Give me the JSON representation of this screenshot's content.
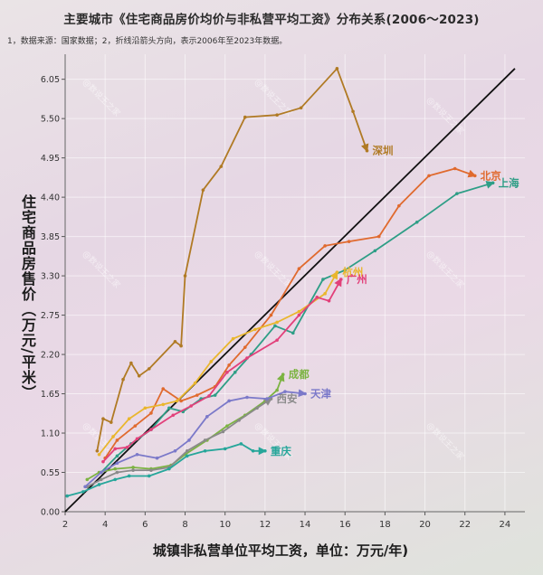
{
  "title": "主要城市《住宅商品房价均价与非私营平均工资》分布关系(2006～2023)",
  "note": "1，数据来源：国家数据；2，折线沿箭头方向，表示2006年至2023年数据。",
  "watermark": "@数说王之家",
  "chart_data": {
    "type": "line",
    "xlabel": "城镇非私营单位平均工资，单位：万元/年)",
    "ylabel": "住宅商品房售价（万元/平米）",
    "xlim": [
      2,
      25
    ],
    "ylim": [
      0,
      6.4
    ],
    "x_ticks": [
      "2",
      "4",
      "6",
      "8",
      "10",
      "12",
      "14",
      "16",
      "18",
      "20",
      "22",
      "24"
    ],
    "y_ticks": [
      "0.00",
      "0.55",
      "1.10",
      "1.65",
      "2.20",
      "2.75",
      "3.30",
      "3.85",
      "4.40",
      "4.95",
      "5.50",
      "6.05"
    ],
    "grid": true,
    "reference_line": {
      "x": [
        2,
        24.5
      ],
      "y": [
        0,
        6.2
      ]
    },
    "series": [
      {
        "name": "深圳",
        "color": "#b07a24",
        "label_pos": "right",
        "points": [
          [
            3.6,
            0.85
          ],
          [
            3.9,
            1.3
          ],
          [
            4.3,
            1.25
          ],
          [
            4.9,
            1.85
          ],
          [
            5.3,
            2.08
          ],
          [
            5.7,
            1.9
          ],
          [
            6.2,
            2.0
          ],
          [
            7.5,
            2.38
          ],
          [
            7.8,
            2.32
          ],
          [
            8.0,
            3.3
          ],
          [
            8.9,
            4.5
          ],
          [
            9.8,
            4.83
          ],
          [
            11.0,
            5.52
          ],
          [
            12.6,
            5.55
          ],
          [
            13.8,
            5.65
          ],
          [
            15.6,
            6.2
          ],
          [
            16.4,
            5.6
          ],
          [
            17.1,
            5.05
          ]
        ]
      },
      {
        "name": "北京",
        "color": "#e06a2e",
        "label_pos": "right",
        "points": [
          [
            4.0,
            0.75
          ],
          [
            4.6,
            1.0
          ],
          [
            5.5,
            1.2
          ],
          [
            6.3,
            1.38
          ],
          [
            6.9,
            1.72
          ],
          [
            7.8,
            1.55
          ],
          [
            8.6,
            1.63
          ],
          [
            9.5,
            1.75
          ],
          [
            10.2,
            2.05
          ],
          [
            11.0,
            2.3
          ],
          [
            12.3,
            2.75
          ],
          [
            13.7,
            3.4
          ],
          [
            15.0,
            3.72
          ],
          [
            16.2,
            3.78
          ],
          [
            17.7,
            3.85
          ],
          [
            18.7,
            4.28
          ],
          [
            20.2,
            4.7
          ],
          [
            21.5,
            4.8
          ],
          [
            22.5,
            4.7
          ]
        ]
      },
      {
        "name": "上海",
        "color": "#2e9e86",
        "label_pos": "right",
        "points": [
          [
            3.8,
            0.55
          ],
          [
            4.6,
            0.78
          ],
          [
            5.3,
            0.95
          ],
          [
            6.3,
            1.15
          ],
          [
            7.2,
            1.45
          ],
          [
            7.9,
            1.4
          ],
          [
            8.8,
            1.58
          ],
          [
            9.5,
            1.63
          ],
          [
            10.5,
            1.95
          ],
          [
            11.3,
            2.2
          ],
          [
            12.5,
            2.6
          ],
          [
            13.4,
            2.5
          ],
          [
            14.9,
            3.25
          ],
          [
            16.0,
            3.38
          ],
          [
            17.5,
            3.65
          ],
          [
            19.6,
            4.05
          ],
          [
            21.6,
            4.45
          ],
          [
            23.4,
            4.6
          ]
        ]
      },
      {
        "name": "杭州",
        "color": "#e9b62d",
        "label_pos": "right",
        "points": [
          [
            3.7,
            0.8
          ],
          [
            4.4,
            1.05
          ],
          [
            5.2,
            1.3
          ],
          [
            6.0,
            1.45
          ],
          [
            6.9,
            1.5
          ],
          [
            7.6,
            1.55
          ],
          [
            8.5,
            1.8
          ],
          [
            9.3,
            2.1
          ],
          [
            10.4,
            2.42
          ],
          [
            11.5,
            2.55
          ],
          [
            12.6,
            2.65
          ],
          [
            13.7,
            2.8
          ],
          [
            15.0,
            3.05
          ],
          [
            15.6,
            3.35
          ]
        ]
      },
      {
        "name": "广州",
        "color": "#e2407a",
        "label_pos": "right",
        "points": [
          [
            3.9,
            0.7
          ],
          [
            4.5,
            0.88
          ],
          [
            5.1,
            0.9
          ],
          [
            5.6,
            1.02
          ],
          [
            6.3,
            1.15
          ],
          [
            7.4,
            1.35
          ],
          [
            8.3,
            1.48
          ],
          [
            9.2,
            1.62
          ],
          [
            10.1,
            1.95
          ],
          [
            11.1,
            2.15
          ],
          [
            12.6,
            2.4
          ],
          [
            13.7,
            2.75
          ],
          [
            14.6,
            3.0
          ],
          [
            15.2,
            2.95
          ],
          [
            15.8,
            3.25
          ]
        ]
      },
      {
        "name": "成都",
        "color": "#7cb342",
        "label_pos": "right",
        "points": [
          [
            3.1,
            0.45
          ],
          [
            3.7,
            0.55
          ],
          [
            4.5,
            0.6
          ],
          [
            5.4,
            0.62
          ],
          [
            6.3,
            0.6
          ],
          [
            7.3,
            0.65
          ],
          [
            8.0,
            0.8
          ],
          [
            9.1,
            1.0
          ],
          [
            10.1,
            1.2
          ],
          [
            11.0,
            1.35
          ],
          [
            12.0,
            1.55
          ],
          [
            12.6,
            1.7
          ],
          [
            12.9,
            1.92
          ]
        ]
      },
      {
        "name": "西安",
        "color": "#8a8a8a",
        "label_pos": "right",
        "points": [
          [
            3.1,
            0.35
          ],
          [
            3.8,
            0.45
          ],
          [
            4.6,
            0.55
          ],
          [
            5.4,
            0.58
          ],
          [
            6.3,
            0.58
          ],
          [
            7.2,
            0.62
          ],
          [
            8.1,
            0.85
          ],
          [
            9.0,
            1.0
          ],
          [
            9.9,
            1.12
          ],
          [
            10.7,
            1.28
          ],
          [
            11.6,
            1.45
          ],
          [
            12.3,
            1.58
          ]
        ]
      },
      {
        "name": "天津",
        "color": "#7b79c9",
        "label_pos": "right",
        "points": [
          [
            3.0,
            0.35
          ],
          [
            3.8,
            0.55
          ],
          [
            4.6,
            0.68
          ],
          [
            5.6,
            0.8
          ],
          [
            6.6,
            0.75
          ],
          [
            7.5,
            0.85
          ],
          [
            8.2,
            1.0
          ],
          [
            9.1,
            1.33
          ],
          [
            10.2,
            1.55
          ],
          [
            11.1,
            1.6
          ],
          [
            12.1,
            1.58
          ],
          [
            13.0,
            1.68
          ],
          [
            14.0,
            1.65
          ]
        ]
      },
      {
        "name": "重庆",
        "color": "#26a69a",
        "label_pos": "right",
        "points": [
          [
            2.1,
            0.22
          ],
          [
            2.9,
            0.28
          ],
          [
            3.7,
            0.38
          ],
          [
            4.5,
            0.45
          ],
          [
            5.2,
            0.5
          ],
          [
            6.2,
            0.5
          ],
          [
            7.2,
            0.6
          ],
          [
            8.1,
            0.78
          ],
          [
            9.0,
            0.85
          ],
          [
            10.0,
            0.88
          ],
          [
            10.8,
            0.95
          ],
          [
            11.4,
            0.85
          ],
          [
            12.0,
            0.85
          ]
        ]
      }
    ]
  }
}
